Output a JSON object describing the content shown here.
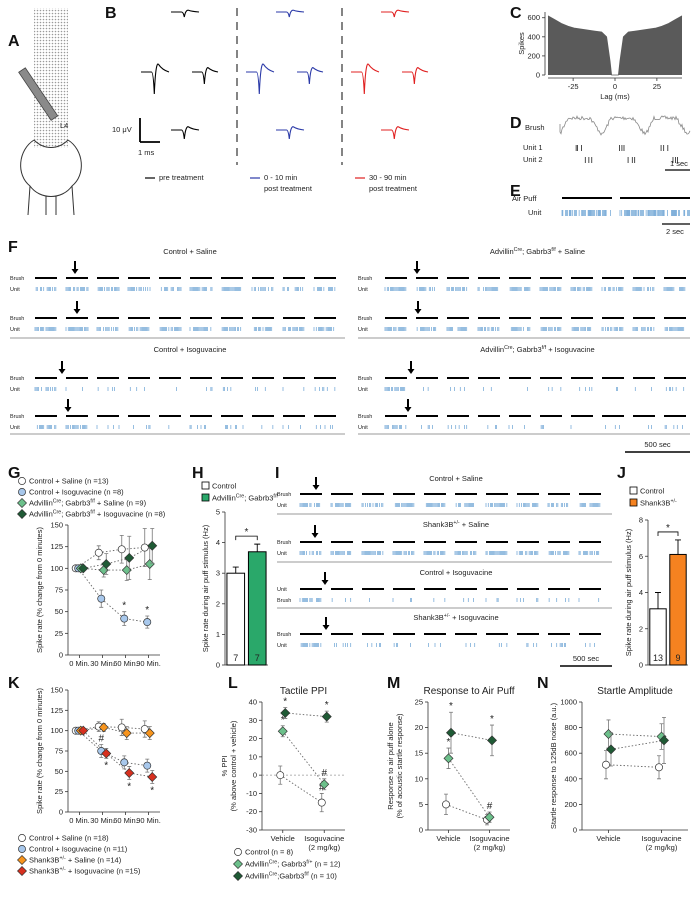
{
  "panels": {
    "A": {
      "label": "A",
      "region": "L4"
    },
    "B": {
      "label": "B",
      "scale_v": "10 μV",
      "scale_t": "1 ms",
      "conditions": [
        [
          "pre treatment"
        ],
        [
          "0 - 10 min",
          "post treatment"
        ],
        [
          "30 - 90 min",
          "post treatment"
        ]
      ],
      "colors": [
        "#000000",
        "#2b3aa8",
        "#e02020"
      ]
    },
    "D": {
      "label": "D",
      "trace": "Brush",
      "units": [
        "Unit 1",
        "Unit 2"
      ],
      "scale": "1 sec"
    },
    "E": {
      "label": "E",
      "stimulus": "Air Puff",
      "unit": "Unit",
      "scale": "2 sec"
    },
    "F": {
      "label": "F",
      "groups": [
        {
          "title": "Control + Saline",
          "rows": [
            [
              "Brush",
              "Unit"
            ],
            [
              "Brush",
              "Unit"
            ]
          ]
        },
        {
          "title": [
            "Advillin",
            {
              "sup": "Cre"
            },
            "; Gabrb3",
            {
              "sup": "f/f"
            },
            " + Saline"
          ],
          "rows": [
            [
              "Brush",
              "Unit"
            ],
            [
              "Brush",
              "Unit"
            ]
          ]
        },
        {
          "title": "Control + Isoguvacine",
          "rows": [
            [
              "Brush",
              "Unit"
            ],
            [
              "Brush",
              "Unit"
            ]
          ]
        },
        {
          "title": [
            "Advillin",
            {
              "sup": "Cre"
            },
            "; Gabrb3",
            {
              "sup": "f/f"
            },
            " + Isoguvacine"
          ],
          "rows": [
            [
              "Brush",
              "Unit"
            ],
            [
              "Brush",
              "Unit"
            ]
          ]
        }
      ],
      "scale": "500 sec"
    },
    "I": {
      "label": "I",
      "groups": [
        {
          "title": "Control + Saline",
          "rows": [
            [
              "Brush",
              "Unit"
            ]
          ]
        },
        {
          "title": [
            "Shank3B",
            {
              "sup": "+/-"
            },
            " + Saline"
          ],
          "rows": [
            [
              "Brush",
              "Unit"
            ]
          ]
        },
        {
          "title": "Control + Isoguvacine",
          "rows": [
            [
              "Unit",
              "Brush"
            ]
          ]
        },
        {
          "title": [
            "Shank3B",
            {
              "sup": "+/-"
            },
            " + Isoguvacine"
          ],
          "rows": [
            [
              "Brush",
              "Unit"
            ]
          ]
        }
      ],
      "scale": "500 sec"
    }
  },
  "chart_data": [
    {
      "label": "C",
      "type": "area",
      "ylabel": "Spikes",
      "xlabel": "Lag (ms)",
      "color": "#5a5a5a",
      "x": [
        -40,
        -36,
        -32,
        -28,
        -24,
        -20,
        -16,
        -12,
        -8,
        -5,
        -3,
        -2,
        2,
        3,
        5,
        8,
        12,
        16,
        20,
        24,
        28,
        32,
        36,
        40
      ],
      "values": [
        620,
        580,
        540,
        510,
        490,
        480,
        470,
        460,
        450,
        400,
        150,
        0,
        0,
        150,
        400,
        450,
        460,
        470,
        480,
        490,
        510,
        540,
        580,
        620
      ],
      "xlim": [
        -40,
        40
      ],
      "ylim": [
        0,
        660
      ],
      "xticks": [
        -25,
        0,
        25
      ],
      "yticks": [
        0,
        200,
        400,
        600
      ]
    },
    {
      "label": "G",
      "type": "line",
      "ylabel": "Spike rate (% change from 0 minutes)",
      "categories": [
        "0 Min.",
        "30 Min.",
        "60 Min.",
        "90 Min."
      ],
      "ylim": [
        0,
        150
      ],
      "yticks": [
        0,
        25,
        50,
        75,
        100,
        125,
        150
      ],
      "series": [
        {
          "name": "Control + Saline (n =13)",
          "color": "#ffffff",
          "marker": "circle",
          "values": [
            100,
            118,
            122,
            124
          ],
          "errors": [
            0,
            8,
            16,
            22
          ]
        },
        {
          "name": "Control + Isoguvacine (n =8)",
          "color": "#a8c8ec",
          "marker": "circle",
          "values": [
            100,
            65,
            42,
            38
          ],
          "errors": [
            0,
            10,
            8,
            7
          ],
          "annotations": [
            null,
            null,
            "*",
            "*"
          ]
        },
        {
          "name": [
            "Advillin",
            {
              "sup": "Cre"
            },
            "; Gabrb3",
            {
              "sup": "f/f"
            },
            " + Saline (n =9)"
          ],
          "color": "#6cc08b",
          "marker": "diamond",
          "values": [
            100,
            98,
            98,
            105
          ],
          "errors": [
            0,
            8,
            12,
            18
          ]
        },
        {
          "name": [
            "Advillin",
            {
              "sup": "Cre"
            },
            "; Gabrb3",
            {
              "sup": "f/f"
            },
            " + Isoguvacine (n =8)"
          ],
          "color": "#1f5a35",
          "marker": "diamond",
          "values": [
            100,
            105,
            112,
            126
          ],
          "errors": [
            0,
            12,
            25,
            20
          ]
        }
      ]
    },
    {
      "label": "H",
      "type": "bar",
      "ylabel": "Spike rate during air puff stimulus (Hz)",
      "categories": [
        "Control",
        [
          "Advillin",
          {
            "sup": "Cre"
          },
          "; Gabrb3",
          {
            "sup": "f/f"
          }
        ]
      ],
      "values": [
        3.0,
        3.7
      ],
      "errors": [
        0.2,
        0.25
      ],
      "colors": [
        "#ffffff",
        "#2aa86a"
      ],
      "n": [
        7,
        7
      ],
      "significance": "*",
      "ylim": [
        0,
        5
      ],
      "yticks": [
        0,
        1,
        2,
        3,
        4,
        5
      ]
    },
    {
      "label": "J",
      "type": "bar",
      "ylabel": "Spike rate during air puff stimulus (Hz)",
      "categories": [
        "Control",
        [
          "Shank3B",
          {
            "sup": "+/-"
          }
        ]
      ],
      "values": [
        3.1,
        6.1
      ],
      "errors": [
        0.9,
        0.8
      ],
      "colors": [
        "#ffffff",
        "#f58220"
      ],
      "n": [
        13,
        9
      ],
      "significance": "*",
      "ylim": [
        0,
        8
      ],
      "yticks": [
        0,
        2,
        4,
        6,
        8
      ]
    },
    {
      "label": "K",
      "type": "line",
      "ylabel": "Spike rate (% change from 0 minutes)",
      "categories": [
        "0 Min.",
        "30 Min.",
        "60 Min.",
        "90 Min."
      ],
      "ylim": [
        0,
        150
      ],
      "yticks": [
        0,
        25,
        50,
        75,
        100,
        125,
        150
      ],
      "series": [
        {
          "name": "Control + Saline (n =18)",
          "color": "#ffffff",
          "marker": "circle",
          "values": [
            100,
            105,
            104,
            102
          ],
          "errors": [
            0,
            6,
            10,
            10
          ]
        },
        {
          "name": "Control + Isoguvacine (n =11)",
          "color": "#a8c8ec",
          "marker": "circle",
          "values": [
            100,
            75,
            61,
            57
          ],
          "errors": [
            0,
            8,
            8,
            8
          ],
          "annotations": [
            null,
            "#",
            null,
            null
          ]
        },
        {
          "name": [
            "Shank3B",
            {
              "sup": "+/-"
            },
            " + Saline (n =14)"
          ],
          "color": "#f7941d",
          "marker": "diamond",
          "values": [
            100,
            104,
            97,
            97
          ],
          "errors": [
            0,
            5,
            8,
            8
          ]
        },
        {
          "name": [
            "Shank3B",
            {
              "sup": "+/-"
            },
            " + Isoguvacine (n =15)"
          ],
          "color": "#d7301f",
          "marker": "diamond",
          "values": [
            100,
            72,
            48,
            43
          ],
          "errors": [
            0,
            6,
            8,
            8
          ],
          "annotations_below": [
            null,
            "*",
            "*",
            "*"
          ]
        }
      ]
    },
    {
      "label": "L",
      "type": "line",
      "title": "Tactile PPI",
      "ylabel": [
        "% PPI",
        "(% above control + vehicle)"
      ],
      "categories": [
        "Vehicle",
        [
          "Isoguvacine",
          "(2 mg/kg)"
        ]
      ],
      "ylim": [
        -30,
        40
      ],
      "yticks": [
        -30,
        -20,
        -10,
        0,
        10,
        20,
        30,
        40
      ],
      "zero_line": true,
      "series": [
        {
          "name": "Control (n = 8)",
          "color": "#ffffff",
          "marker": "circle",
          "values": [
            0,
            -15
          ],
          "errors": [
            5,
            5
          ],
          "annotations": [
            null,
            "#"
          ]
        },
        {
          "name": [
            "Advillin",
            {
              "sup": "Cre"
            },
            "; Gabrb3",
            {
              "sup": "f/+"
            },
            " (n = 12)"
          ],
          "color": "#6cc08b",
          "marker": "diamond",
          "values": [
            24,
            -5
          ],
          "errors": [
            3,
            3
          ],
          "annotations": [
            "*",
            "#"
          ]
        },
        {
          "name": [
            "Advillin",
            {
              "sup": "Cre"
            },
            ";Gabrb3",
            {
              "sup": "f/f"
            },
            " (n = 10)"
          ],
          "color": "#1f5a35",
          "marker": "diamond",
          "values": [
            34,
            32
          ],
          "errors": [
            3,
            3
          ],
          "annotations": [
            "*",
            "*"
          ]
        }
      ]
    },
    {
      "label": "M",
      "type": "line",
      "title": "Response to Air Puff",
      "ylabel": [
        "Response to air puff alone",
        "(% of acoustic startle response)"
      ],
      "categories": [
        "Vehicle",
        [
          "Isoguvacine",
          "(2 mg/kg)"
        ]
      ],
      "ylim": [
        0,
        25
      ],
      "yticks": [
        0,
        5,
        10,
        15,
        20,
        25
      ],
      "series": [
        {
          "color": "#ffffff",
          "marker": "circle",
          "values": [
            5,
            2
          ],
          "errors": [
            2,
            1
          ]
        },
        {
          "color": "#6cc08b",
          "marker": "diamond",
          "values": [
            14,
            2.5
          ],
          "errors": [
            2,
            1
          ],
          "annotations": [
            "*",
            "#"
          ]
        },
        {
          "color": "#1f5a35",
          "marker": "diamond",
          "values": [
            19,
            17.5
          ],
          "errors": [
            4,
            3
          ],
          "annotations": [
            "*",
            "*"
          ]
        }
      ]
    },
    {
      "label": "N",
      "type": "line",
      "title": "Startle Amplitude",
      "ylabel": "Startle response to 125dB noise (a.u.)",
      "categories": [
        "Vehicle",
        [
          "Isoguvacine",
          "(2 mg/kg)"
        ]
      ],
      "ylim": [
        0,
        1000
      ],
      "yticks": [
        0,
        200,
        400,
        600,
        800,
        1000
      ],
      "series": [
        {
          "color": "#ffffff",
          "marker": "circle",
          "values": [
            510,
            490
          ],
          "errors": [
            110,
            90
          ]
        },
        {
          "color": "#6cc08b",
          "marker": "diamond",
          "values": [
            750,
            730
          ],
          "errors": [
            110,
            100
          ]
        },
        {
          "color": "#1f5a35",
          "marker": "diamond",
          "values": [
            630,
            700
          ],
          "errors": [
            130,
            180
          ]
        }
      ]
    }
  ]
}
